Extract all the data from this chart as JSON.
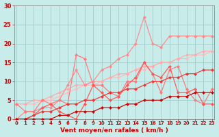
{
  "background_color": "#c8ecea",
  "grid_color": "#a0cccc",
  "spine_color": "#888888",
  "tick_color": "#cc0000",
  "label_color": "#cc0000",
  "xlabel": "Vent moyen/en rafales ( km/h )",
  "xlabel_fontsize": 6.5,
  "ytick_fontsize": 6,
  "xtick_fontsize": 5,
  "yticks": [
    0,
    5,
    10,
    15,
    20,
    25,
    30
  ],
  "xticks": [
    0,
    1,
    2,
    3,
    4,
    5,
    6,
    7,
    8,
    9,
    10,
    11,
    12,
    13,
    14,
    15,
    16,
    17,
    18,
    19,
    20,
    21,
    22,
    23
  ],
  "ylim": [
    0,
    30
  ],
  "xlim": [
    0,
    23
  ],
  "lines": [
    {
      "color": "#ffbbbb",
      "y": [
        4,
        4,
        4,
        5,
        5,
        6,
        7,
        8,
        9,
        9,
        10,
        11,
        11,
        12,
        13,
        13,
        14,
        15,
        15,
        16,
        16,
        17,
        17,
        18
      ]
    },
    {
      "color": "#ffaaaa",
      "y": [
        4,
        4,
        5,
        5,
        6,
        7,
        8,
        9,
        9,
        10,
        10,
        11,
        12,
        12,
        13,
        14,
        14,
        15,
        15,
        16,
        17,
        17,
        18,
        18
      ]
    },
    {
      "color": "#ff8888",
      "y": [
        0,
        2,
        2,
        3,
        3,
        5,
        9,
        13,
        9,
        10,
        13,
        14,
        16,
        17,
        20,
        27,
        20,
        19,
        22,
        22,
        22,
        22,
        22,
        22
      ]
    },
    {
      "color": "#ff7777",
      "y": [
        4,
        2,
        2,
        5,
        4,
        5,
        4,
        17,
        16,
        9,
        9,
        7,
        6,
        10,
        10,
        15,
        12,
        7,
        13,
        14,
        8,
        5,
        4,
        8
      ]
    },
    {
      "color": "#ff5555",
      "y": [
        0,
        0,
        1,
        3,
        4,
        2,
        1,
        0,
        4,
        9,
        7,
        5,
        6,
        9,
        11,
        15,
        12,
        11,
        14,
        7,
        7,
        8,
        4,
        4
      ]
    },
    {
      "color": "#ee3333",
      "y": [
        0,
        0,
        1,
        2,
        2,
        3,
        4,
        4,
        5,
        5,
        6,
        7,
        7,
        8,
        8,
        9,
        10,
        10,
        11,
        11,
        12,
        12,
        13,
        13
      ]
    },
    {
      "color": "#cc0000",
      "y": [
        0,
        0,
        0,
        0,
        0,
        1,
        1,
        2,
        2,
        2,
        3,
        3,
        3,
        4,
        4,
        5,
        5,
        5,
        6,
        6,
        6,
        7,
        7,
        7
      ]
    }
  ],
  "wind_arrows": [
    "↙",
    "↙",
    "↙",
    "↑",
    "↗",
    "↗",
    "→",
    "→",
    "→",
    "→",
    "→",
    "→",
    "→",
    "→",
    "→",
    "→",
    "→",
    "→",
    "→",
    "↗",
    "↗",
    "↓"
  ]
}
